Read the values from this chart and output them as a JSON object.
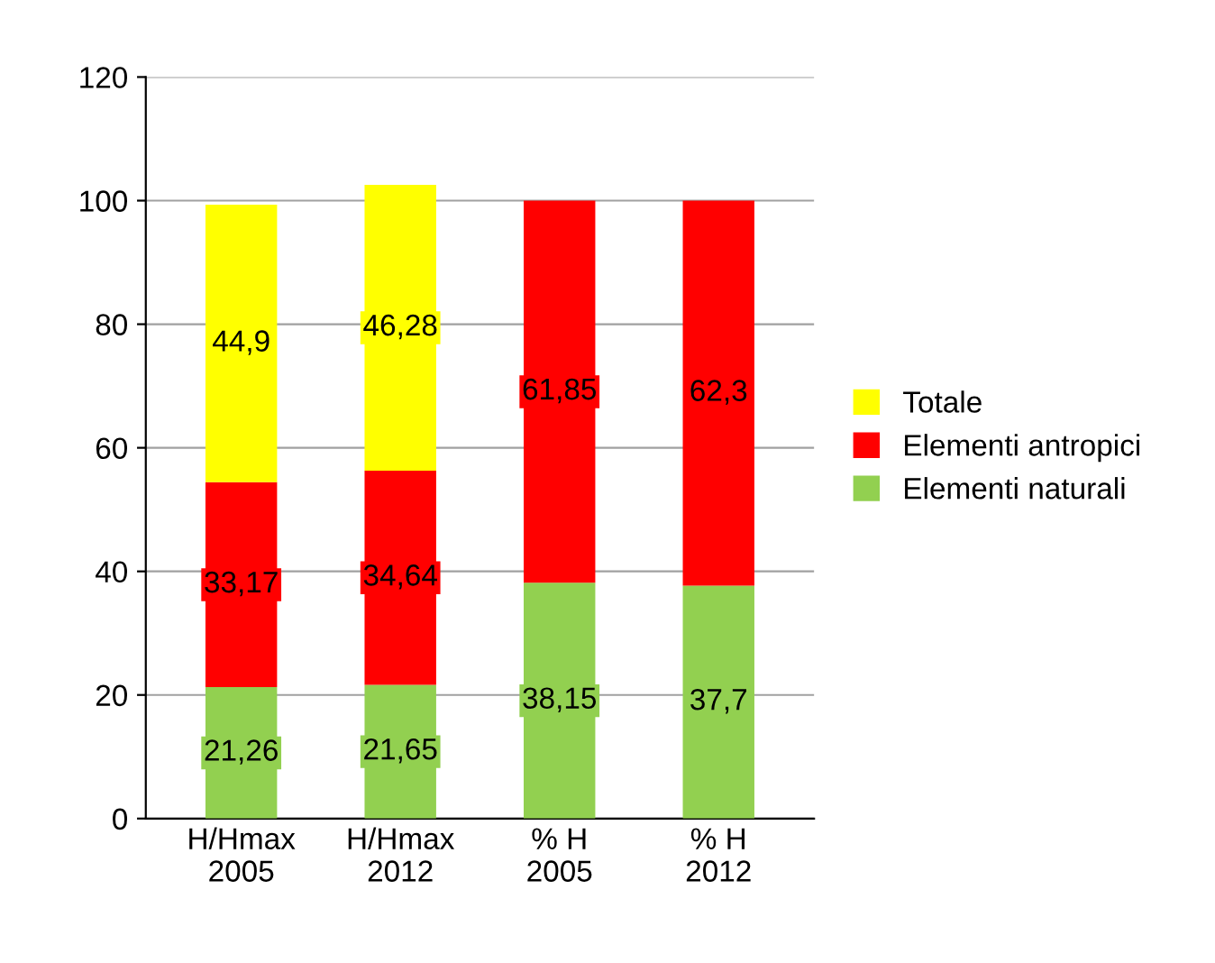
{
  "chart_data": {
    "type": "bar",
    "stacked": true,
    "categories": [
      "H/Hmax\n2005",
      "H/Hmax\n2012",
      "% H\n2005",
      "% H\n2012"
    ],
    "series": [
      {
        "name": "Elementi naturali",
        "color": "#92d050",
        "values": [
          21.26,
          21.65,
          38.15,
          37.7
        ],
        "value_labels": [
          "21,26",
          "21,65",
          "38,15",
          "37,7"
        ]
      },
      {
        "name": "Elementi antropici",
        "color": "#ff0000",
        "values": [
          33.17,
          34.64,
          61.85,
          62.3
        ],
        "value_labels": [
          "33,17",
          "34,64",
          "61,85",
          "62,3"
        ]
      },
      {
        "name": "Totale",
        "color": "#ffff00",
        "values": [
          44.9,
          46.28,
          null,
          null
        ],
        "value_labels": [
          "44,9",
          "46,28",
          null,
          null
        ]
      }
    ],
    "ylim": [
      0,
      120
    ],
    "yticks": [
      0,
      20,
      40,
      60,
      80,
      100,
      120
    ],
    "grid": "y",
    "legend": "right"
  }
}
